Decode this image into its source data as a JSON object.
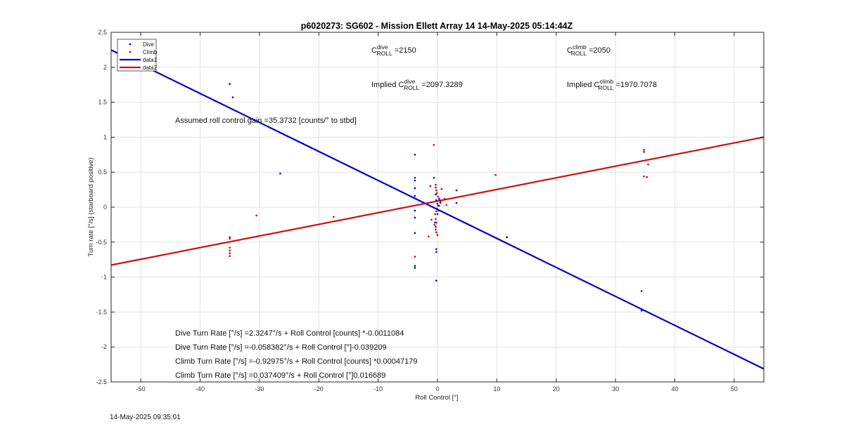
{
  "chart_data": {
    "type": "scatter",
    "title": "p6020273: SG602 - Mission Ellett Array 14 14-May-2025 05:14:44Z",
    "xlabel": "Roll Control [°]",
    "ylabel": "Turn rate [°/s] (starboard positive)",
    "xlim": [
      -55,
      55
    ],
    "ylim": [
      -2.5,
      2.5
    ],
    "xticks": [
      -50,
      -40,
      -30,
      -20,
      -10,
      0,
      10,
      20,
      30,
      40,
      50
    ],
    "yticks": [
      -2.5,
      -2,
      -1.5,
      -1,
      -0.5,
      0,
      0.5,
      1,
      1.5,
      2,
      2.5
    ],
    "xtick_labels": [
      "-50",
      "-40",
      "-30",
      "-20",
      "-10",
      "0",
      "10",
      "20",
      "30",
      "40",
      "50"
    ],
    "ytick_labels": [
      "-2.5",
      "-2",
      "-1.5",
      "-1",
      "-0.5",
      "0",
      "0.5",
      "1",
      "1.5",
      "2",
      "2.5"
    ],
    "grid": true,
    "legend_position": "top-left",
    "colors": {
      "dive": "#0000cc",
      "climb": "#cc0000",
      "data1": "#0000cc",
      "data2": "#cc1111"
    },
    "series": [
      {
        "name": "Dive",
        "kind": "points",
        "points": [
          [
            -35,
            1.76
          ],
          [
            -34.5,
            1.57
          ],
          [
            -26.5,
            0.48
          ],
          [
            -3.8,
            0.75
          ],
          [
            -3.8,
            0.42
          ],
          [
            -3.8,
            0.38
          ],
          [
            -3.8,
            0.27
          ],
          [
            -3.8,
            0.16
          ],
          [
            -3.8,
            -0.05
          ],
          [
            -3.8,
            -0.15
          ],
          [
            -3.8,
            -0.37
          ],
          [
            -3.8,
            -0.84
          ],
          [
            -3.8,
            -0.87
          ],
          [
            -0.6,
            0.42
          ],
          [
            -0.3,
            0.18
          ],
          [
            -0.2,
            0.1
          ],
          [
            0,
            0.05
          ],
          [
            0.1,
            0.02
          ],
          [
            -0.1,
            -0.02
          ],
          [
            0.2,
            -0.05
          ],
          [
            0,
            -0.1
          ],
          [
            -0.4,
            -0.22
          ],
          [
            -0.3,
            -0.28
          ],
          [
            -0.2,
            -0.6
          ],
          [
            -0.2,
            -0.64
          ],
          [
            -0.2,
            -1.05
          ],
          [
            0.3,
            0.12
          ],
          [
            0.5,
            0.08
          ],
          [
            3.2,
            0.24
          ],
          [
            3.2,
            0.06
          ],
          [
            11.7,
            -0.43
          ],
          [
            34.4,
            -1.2
          ],
          [
            34.4,
            -1.48
          ]
        ]
      },
      {
        "name": "Climb",
        "kind": "points",
        "points": [
          [
            -35,
            -0.43
          ],
          [
            -35,
            -0.45
          ],
          [
            -35,
            -0.58
          ],
          [
            -35,
            -0.62
          ],
          [
            -35,
            -0.66
          ],
          [
            -35,
            -0.7
          ],
          [
            -30.5,
            -0.12
          ],
          [
            -17.5,
            -0.14
          ],
          [
            -3.8,
            -0.71
          ],
          [
            -0.6,
            0.89
          ],
          [
            -0.3,
            0.32
          ],
          [
            -0.3,
            0.28
          ],
          [
            -0.2,
            0.24
          ],
          [
            -0.1,
            0.2
          ],
          [
            0.1,
            0.15
          ],
          [
            0.3,
            0.1
          ],
          [
            0.5,
            0.06
          ],
          [
            0.3,
            0.02
          ],
          [
            -0.2,
            -0.06
          ],
          [
            -0.4,
            -0.1
          ],
          [
            -0.3,
            -0.17
          ],
          [
            -0.2,
            -0.22
          ],
          [
            -0.5,
            -0.25
          ],
          [
            -0.3,
            -0.32
          ],
          [
            -0.2,
            -0.36
          ],
          [
            0,
            -0.4
          ],
          [
            -1.2,
            0.3
          ],
          [
            -1.0,
            -0.18
          ],
          [
            -1.5,
            -0.42
          ],
          [
            1.2,
            0.12
          ],
          [
            1.5,
            0.03
          ],
          [
            0.7,
            0.26
          ],
          [
            9.8,
            0.46
          ],
          [
            34.8,
            0.82
          ],
          [
            34.8,
            0.79
          ],
          [
            34.8,
            0.44
          ],
          [
            35.3,
            0.43
          ],
          [
            35.5,
            0.61
          ]
        ]
      },
      {
        "name": "data1",
        "kind": "line",
        "slope": -0.04145,
        "intercept": -0.0329
      },
      {
        "name": "data2",
        "kind": "line",
        "slope": 0.01663,
        "intercept": 0.0863
      }
    ],
    "annotations": {
      "c_dive_label": "C",
      "c_dive_sup": "dive",
      "c_dive_sub": "ROLL",
      "c_dive_value": " =2150",
      "c_climb_label": "C",
      "c_climb_sup": "climb",
      "c_climb_sub": "ROLL",
      "c_climb_value": " =2050",
      "implied_dive_label": "Implied C",
      "implied_dive_sup": "dive",
      "implied_dive_sub": "ROLL",
      "implied_dive_value": " =2097.3289",
      "implied_climb_label": "Implied C",
      "implied_climb_sup": "climb",
      "implied_climb_sub": "ROLL",
      "implied_climb_value": " =1970.7078",
      "gain": "Assumed roll control gain =35.3732 [counts/° to stbd]",
      "fits": [
        "Dive Turn Rate [°/s] =2.3247°/s + Roll Control [counts] *-0.0011084",
        "Dive Turn Rate [°/s] =-0.058382°/s + Roll Control [°]-0.039209",
        "Climb Turn Rate [°/s] =-0.92975°/s + Roll Control [counts] *0.00047179",
        "Climb Turn Rate [°/s] =0.037409°/s + Roll Control [°]0.016689"
      ]
    }
  },
  "timestamp": "14-May-2025 09:35:01"
}
